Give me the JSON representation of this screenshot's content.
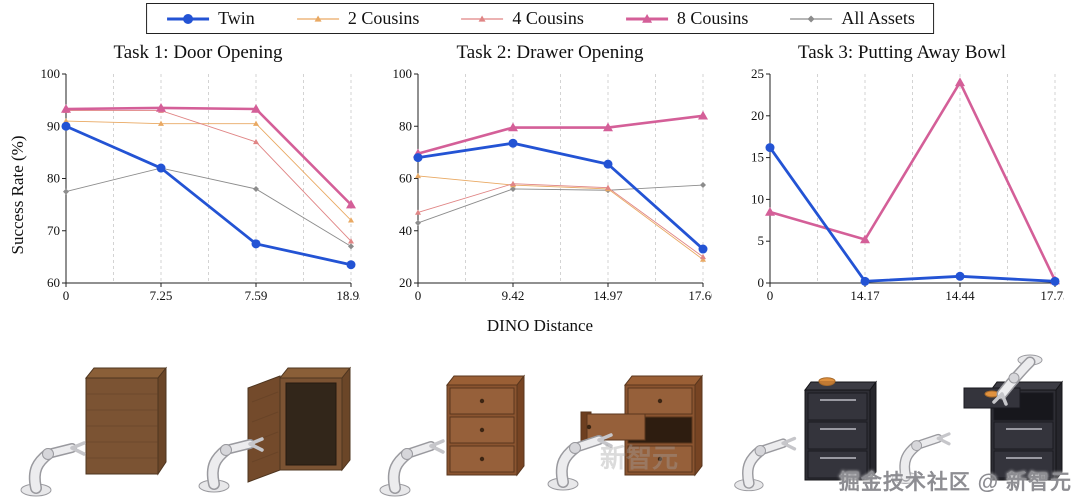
{
  "figure": {
    "ylabel": "Success Rate (%)",
    "xlabel": "DINO Distance",
    "watermark": "掘金技术社区 @ 新智元",
    "watermark_faint": "新智元"
  },
  "legend": {
    "items": [
      {
        "label": "Twin",
        "color": "#2353d4",
        "marker": "circle",
        "line_width": 3
      },
      {
        "label": "2 Cousins",
        "color": "#e9a963",
        "marker": "triangle",
        "line_width": 1
      },
      {
        "label": "4 Cousins",
        "color": "#e08585",
        "marker": "triangle",
        "line_width": 1
      },
      {
        "label": "8 Cousins",
        "color": "#d45f98",
        "marker": "triangle",
        "line_width": 3
      },
      {
        "label": "All Assets",
        "color": "#8c8c8c",
        "marker": "diamond",
        "line_width": 1
      }
    ]
  },
  "chart_data": [
    {
      "type": "line",
      "title": "Task 1: Door Opening",
      "categories": [
        "0",
        "7.25",
        "7.59",
        "18.93"
      ],
      "ylim": [
        60,
        100
      ],
      "yticks": [
        60,
        70,
        80,
        90,
        100
      ],
      "grid": "dashed-vertical",
      "series": [
        {
          "name": "All Assets",
          "color": "#8c8c8c",
          "marker": "diamond",
          "width": 0.9,
          "msize": 3,
          "values": [
            77.5,
            82,
            78,
            67
          ]
        },
        {
          "name": "2 Cousins",
          "color": "#e9a963",
          "marker": "triangle",
          "width": 0.9,
          "msize": 3,
          "values": [
            91,
            90.5,
            90.5,
            72
          ]
        },
        {
          "name": "4 Cousins",
          "color": "#e08585",
          "marker": "triangle",
          "width": 0.9,
          "msize": 3,
          "values": [
            93,
            93,
            87,
            68
          ]
        },
        {
          "name": "8 Cousins",
          "color": "#d45f98",
          "marker": "triangle",
          "width": 2.6,
          "msize": 5,
          "values": [
            93.3,
            93.5,
            93.3,
            75
          ]
        },
        {
          "name": "Twin",
          "color": "#2353d4",
          "marker": "circle",
          "width": 2.8,
          "msize": 4.5,
          "values": [
            90,
            82,
            67.5,
            63.5
          ]
        }
      ]
    },
    {
      "type": "line",
      "title": "Task 2: Drawer Opening",
      "categories": [
        "0",
        "9.42",
        "14.97",
        "17.60"
      ],
      "ylim": [
        20,
        100
      ],
      "yticks": [
        20,
        40,
        60,
        80,
        100
      ],
      "grid": "dashed-vertical",
      "series": [
        {
          "name": "All Assets",
          "color": "#8c8c8c",
          "marker": "diamond",
          "width": 0.9,
          "msize": 3,
          "values": [
            43,
            56,
            55.5,
            57.5
          ]
        },
        {
          "name": "2 Cousins",
          "color": "#e9a963",
          "marker": "triangle",
          "width": 0.9,
          "msize": 3,
          "values": [
            61,
            57.5,
            56,
            29
          ]
        },
        {
          "name": "4 Cousins",
          "color": "#e08585",
          "marker": "triangle",
          "width": 0.9,
          "msize": 3,
          "values": [
            47,
            58,
            56.5,
            30
          ]
        },
        {
          "name": "8 Cousins",
          "color": "#d45f98",
          "marker": "triangle",
          "width": 2.6,
          "msize": 5,
          "values": [
            69.5,
            79.5,
            79.5,
            84
          ]
        },
        {
          "name": "Twin",
          "color": "#2353d4",
          "marker": "circle",
          "width": 2.8,
          "msize": 4.5,
          "values": [
            68,
            73.5,
            65.5,
            33
          ]
        }
      ]
    },
    {
      "type": "line",
      "title": "Task 3: Putting Away Bowl",
      "categories": [
        "0",
        "14.17",
        "14.44",
        "17.73"
      ],
      "ylim": [
        0,
        25
      ],
      "yticks": [
        0,
        5,
        10,
        15,
        20,
        25
      ],
      "grid": "dashed-vertical",
      "series": [
        {
          "name": "8 Cousins",
          "color": "#d45f98",
          "marker": "triangle",
          "width": 2.6,
          "msize": 5,
          "values": [
            8.5,
            5.2,
            24,
            0.3
          ]
        },
        {
          "name": "Twin",
          "color": "#2353d4",
          "marker": "circle",
          "width": 2.8,
          "msize": 4.5,
          "values": [
            16.2,
            0.2,
            0.8,
            0.2
          ]
        }
      ]
    }
  ]
}
